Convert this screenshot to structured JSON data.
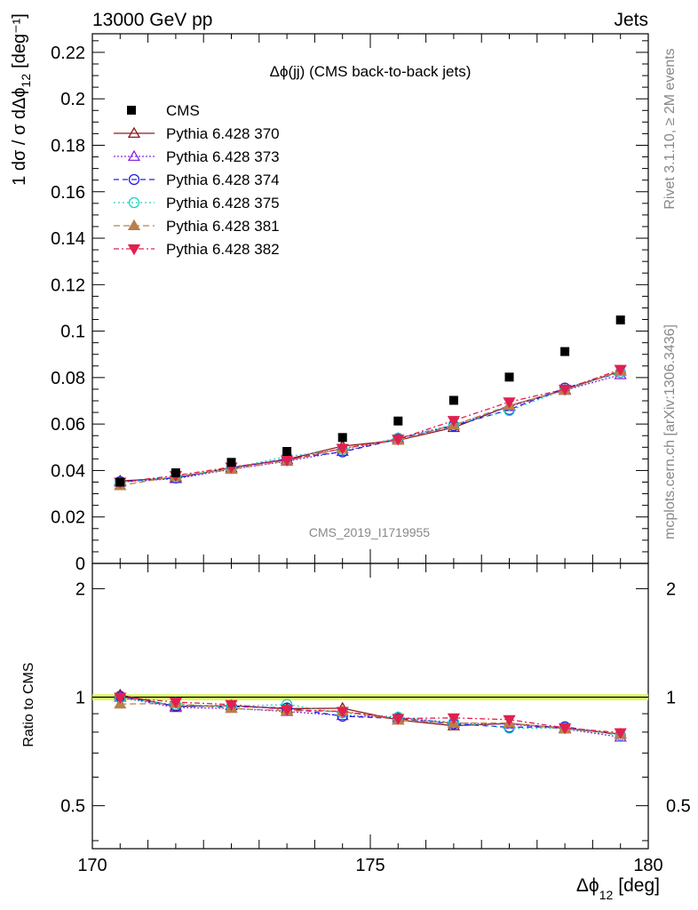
{
  "header": {
    "left": "13000 GeV pp",
    "right": "Jets"
  },
  "side_labels": {
    "rivet": "Rivet 3.1.10, ≥ 2M events",
    "mcplots": "mcplots.cern.ch [arXiv:1306.3436]"
  },
  "watermark": "CMS_2019_I1719955",
  "chart_data": {
    "type": "line",
    "title": "Δϕ(jj) (CMS back-to-back jets)",
    "xlabel": "Δϕ",
    "xlabel_sub": "12",
    "xlabel_unit": "[deg]",
    "ylabel": "1 dσ / σ dΔϕ",
    "ylabel_sub": "12",
    "ylabel_unit": "[deg⁻¹]",
    "ratio_ylabel": "Ratio to CMS",
    "xlim": [
      170,
      180
    ],
    "ylim": [
      0,
      0.228
    ],
    "ratio_ylim": [
      0.38,
      2.35
    ],
    "ratio_log_scale": true,
    "xticks": [
      "170",
      "175",
      "180"
    ],
    "yticks": [
      "0",
      "0.02",
      "0.04",
      "0.06",
      "0.08",
      "0.1",
      "0.12",
      "0.14",
      "0.16",
      "0.18",
      "0.2",
      "0.22"
    ],
    "ratio_yticks": [
      "0.5",
      "1",
      "2"
    ],
    "x": [
      170.5,
      171.5,
      172.5,
      173.5,
      174.5,
      175.5,
      176.5,
      177.5,
      178.5,
      179.5
    ],
    "data": {
      "name": "CMS",
      "color": "#000000",
      "values": [
        0.035,
        0.039,
        0.0435,
        0.0482,
        0.0542,
        0.0613,
        0.0702,
        0.0802,
        0.0912,
        0.1048
      ]
    },
    "series": [
      {
        "name": "Pythia 6.428 370",
        "color": "#8b1a1a",
        "dash": "",
        "marker": "triangle-open",
        "values": [
          0.0355,
          0.0368,
          0.0412,
          0.0448,
          0.0505,
          0.053,
          0.0585,
          0.0678,
          0.0748,
          0.0828
        ]
      },
      {
        "name": "Pythia 6.428 373",
        "color": "#8a2be2",
        "dash": "2,2",
        "marker": "triangle-open",
        "values": [
          0.035,
          0.0365,
          0.0405,
          0.044,
          0.0482,
          0.0538,
          0.0595,
          0.0675,
          0.0745,
          0.0812
        ]
      },
      {
        "name": "Pythia 6.428 374",
        "color": "#2020e0",
        "dash": "6,4",
        "marker": "circle-open",
        "values": [
          0.0352,
          0.0368,
          0.041,
          0.045,
          0.048,
          0.0535,
          0.0592,
          0.0662,
          0.0755,
          0.0822
        ]
      },
      {
        "name": "Pythia 6.428 375",
        "color": "#20d0c0",
        "dash": "2,3",
        "marker": "circle-open",
        "values": [
          0.0348,
          0.0372,
          0.041,
          0.046,
          0.049,
          0.054,
          0.0598,
          0.0658,
          0.0748,
          0.0822
        ]
      },
      {
        "name": "Pythia 6.428 381",
        "color": "#b8804a",
        "dash": "7,4",
        "marker": "triangle-filled",
        "values": [
          0.0335,
          0.0375,
          0.0405,
          0.0442,
          0.0495,
          0.053,
          0.0595,
          0.068,
          0.0745,
          0.0828
        ]
      },
      {
        "name": "Pythia 6.428 382",
        "color": "#e02050",
        "dash": "6,3,2,3",
        "marker": "triangle-down-filled",
        "values": [
          0.035,
          0.0378,
          0.0415,
          0.0445,
          0.0495,
          0.0535,
          0.0615,
          0.0695,
          0.075,
          0.0835
        ]
      }
    ],
    "legend": "top-left"
  }
}
